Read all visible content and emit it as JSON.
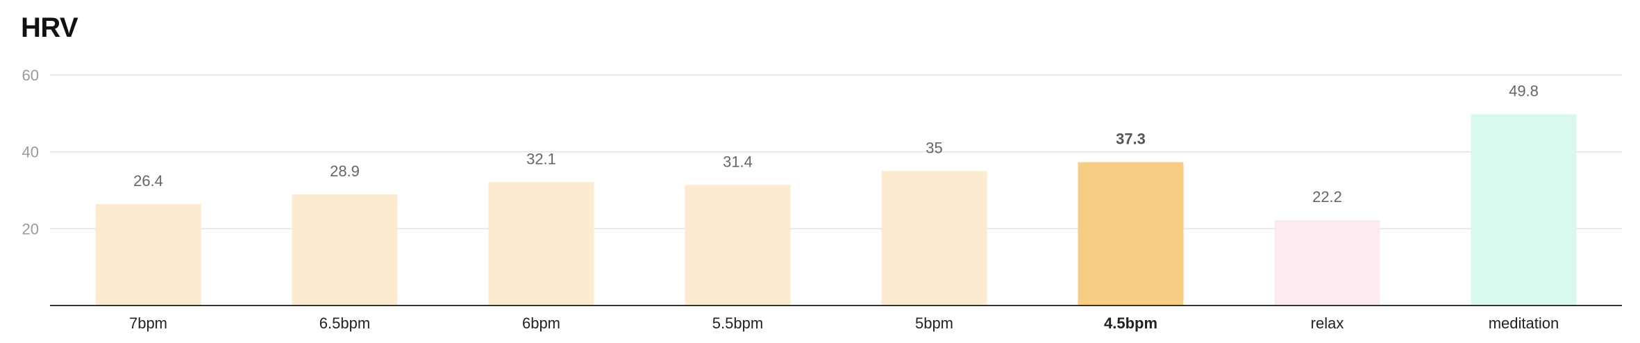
{
  "chart_data": {
    "type": "bar",
    "title": "HRV",
    "xlabel": "",
    "ylabel": "",
    "ylim": [
      0,
      60
    ],
    "yticks": [
      20,
      40,
      60
    ],
    "grid": true,
    "categories": [
      "7bpm",
      "6.5bpm",
      "6bpm",
      "5.5bpm",
      "5bpm",
      "4.5bpm",
      "relax",
      "meditation"
    ],
    "values": [
      26.4,
      28.9,
      32.1,
      31.4,
      35,
      37.3,
      22.2,
      49.8
    ],
    "value_labels": [
      "26.4",
      "28.9",
      "32.1",
      "31.4",
      "35",
      "37.3",
      "22.2",
      "49.8"
    ],
    "highlight_index": 5,
    "colors": [
      "#fcebd1",
      "#fcebd1",
      "#fcebd1",
      "#fcebd1",
      "#fcebd1",
      "#f7cc85",
      "#fbebee",
      "#d9f9ec"
    ]
  }
}
